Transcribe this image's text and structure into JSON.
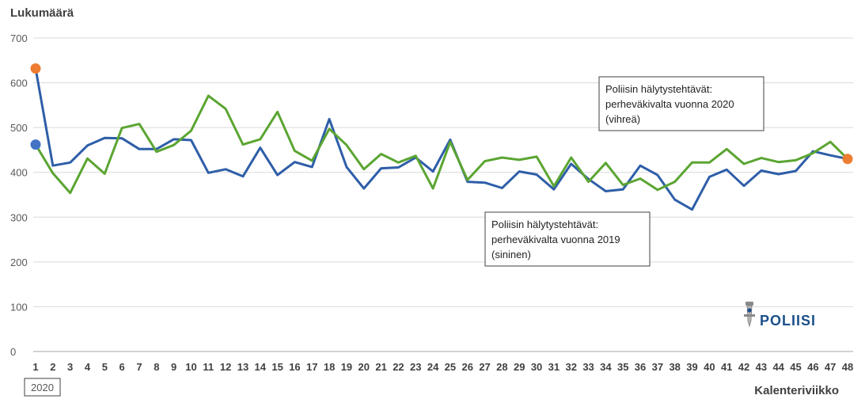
{
  "chart_data": {
    "type": "line",
    "ylabel": "Lukumäärä",
    "xlabel": "Kalenteriviikko",
    "year_label": "2020",
    "ylim": [
      0,
      700
    ],
    "yticks": [
      0,
      100,
      200,
      300,
      400,
      500,
      600,
      700
    ],
    "grid": "horizontal",
    "x": [
      1,
      2,
      3,
      4,
      5,
      6,
      7,
      8,
      9,
      10,
      11,
      12,
      13,
      14,
      15,
      16,
      17,
      18,
      19,
      20,
      21,
      22,
      23,
      24,
      25,
      26,
      27,
      28,
      29,
      30,
      31,
      32,
      33,
      34,
      35,
      36,
      37,
      38,
      39,
      40,
      41,
      42,
      43,
      44,
      45,
      46,
      47,
      48
    ],
    "series": [
      {
        "color": "#2e5ea8",
        "values": [
          632,
          415,
          422,
          460,
          477,
          476,
          452,
          452,
          474,
          472,
          399,
          407,
          391,
          455,
          394,
          423,
          412,
          519,
          412,
          364,
          409,
          411,
          433,
          402,
          473,
          379,
          377,
          365,
          402,
          395,
          362,
          419,
          385,
          358,
          362,
          415,
          394,
          339,
          317,
          390,
          406,
          370,
          404,
          396,
          403,
          447,
          438,
          430
        ]
      },
      {
        "color": "#5ba532",
        "values": [
          462,
          398,
          354,
          431,
          397,
          499,
          508,
          446,
          461,
          493,
          571,
          542,
          462,
          474,
          535,
          448,
          426,
          497,
          461,
          407,
          441,
          422,
          437,
          364,
          468,
          383,
          425,
          433,
          428,
          435,
          369,
          433,
          379,
          421,
          372,
          386,
          361,
          379,
          422,
          422,
          452,
          419,
          432,
          423,
          427,
          443,
          468,
          430
        ]
      }
    ],
    "markers": [
      {
        "x": 1,
        "value": 632,
        "color": "#ed7d31"
      },
      {
        "x": 1,
        "value": 462,
        "color": "#4472c4"
      },
      {
        "x": 48,
        "value": 430,
        "color": "#ed7d31"
      }
    ],
    "annotations": [
      {
        "lines": [
          "Poliisin hälytystehtävät:",
          "perheväkivalta vuonna 2020",
          "(vihreä)"
        ]
      },
      {
        "lines": [
          "Poliisin hälytystehtävät:",
          "perheväkivalta vuonna 2019",
          "(sininen)"
        ]
      }
    ]
  },
  "logo": {
    "text": "POLIISI",
    "color": "#1b4f8a"
  }
}
